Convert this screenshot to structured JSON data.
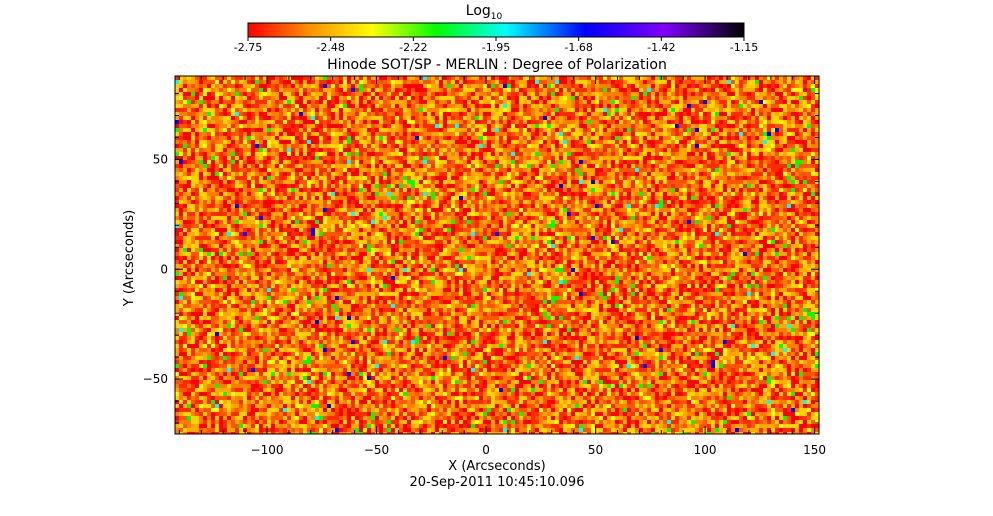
{
  "colorbar": {
    "label": "Log",
    "label_subscript": "10",
    "ticks": [
      "-2.75",
      "-2.48",
      "-2.22",
      "-1.95",
      "-1.68",
      "-1.42",
      "-1.15"
    ],
    "range": [
      -2.75,
      -1.15
    ]
  },
  "chart_data": {
    "type": "heatmap",
    "title": "Hinode SOT/SP - MERLIN : Degree of Polarization",
    "xlabel": "X (Arcseconds)",
    "ylabel": "Y (Arcseconds)",
    "xlim": [
      -142,
      152
    ],
    "ylim": [
      -75,
      88
    ],
    "x_ticks": [
      -100,
      -50,
      0,
      50,
      100,
      150
    ],
    "y_ticks": [
      -50,
      0,
      50
    ],
    "x_tick_labels": [
      "−100",
      "−50",
      "0",
      "50",
      "100",
      "150"
    ],
    "y_tick_labels": [
      "−50",
      "0",
      "50"
    ],
    "value_scale": "log10",
    "background_value_range": [
      -2.75,
      -2.45
    ],
    "colormap": [
      "#ff0000",
      "#ff8c00",
      "#ffff00",
      "#00ff00",
      "#00ffff",
      "#0000ff",
      "#8000ff",
      "#000000"
    ],
    "grid": false
  },
  "timestamp": "20-Sep-2011 10:45:10.096"
}
